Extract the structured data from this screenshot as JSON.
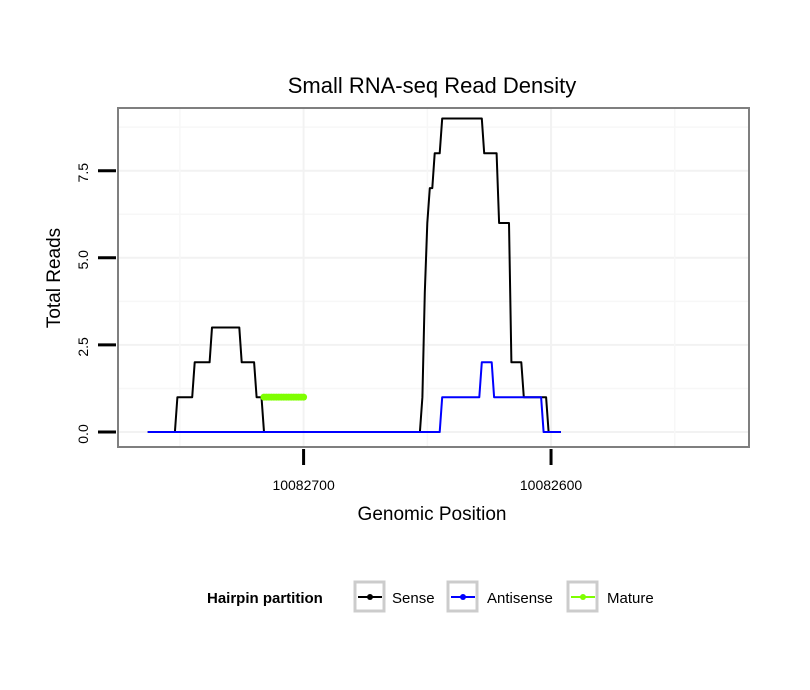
{
  "chart_data": {
    "type": "line",
    "title": "Small RNA-seq Read Density",
    "xlabel": "Genomic Position",
    "ylabel": "Total Reads",
    "x_reversed": true,
    "xlim": [
      10082775,
      10082520
    ],
    "ylim": [
      0,
      9.3
    ],
    "x_ticks": [
      {
        "value": 10082700,
        "label": "10082700"
      },
      {
        "value": 10082600,
        "label": "10082600"
      }
    ],
    "y_ticks": [
      {
        "value": 0,
        "label": "0.0"
      },
      {
        "value": 2.5,
        "label": "2.5"
      },
      {
        "value": 5,
        "label": "5.0"
      },
      {
        "value": 7.5,
        "label": "7.5"
      }
    ],
    "grid": true,
    "legend": {
      "title": "Hairpin partition",
      "position": "bottom",
      "entries": [
        {
          "name": "Sense",
          "color": "#000000"
        },
        {
          "name": "Antisense",
          "color": "#0000ff"
        },
        {
          "name": "Mature",
          "color": "#7fff00"
        }
      ]
    },
    "series": [
      {
        "name": "Sense",
        "color": "#000000",
        "x": [
          10082763,
          10082752,
          10082751,
          10082745,
          10082744,
          10082738,
          10082737,
          10082726,
          10082725,
          10082720,
          10082719,
          10082717,
          10082716,
          10082653,
          10082652,
          10082651,
          10082650,
          10082649,
          10082648,
          10082647,
          10082645,
          10082644,
          10082642,
          10082641,
          10082636,
          10082635,
          10082628,
          10082627,
          10082622,
          10082621,
          10082617,
          10082616,
          10082612,
          10082611,
          10082607,
          10082606,
          10082602,
          10082601,
          10082596
        ],
        "y": [
          0,
          0,
          1,
          1,
          2,
          2,
          3,
          3,
          2,
          2,
          1,
          1,
          0,
          0,
          1,
          4,
          6,
          7,
          7,
          8,
          8,
          9,
          9,
          9,
          9,
          9,
          9,
          8,
          8,
          6,
          6,
          2,
          2,
          1,
          1,
          1,
          1,
          0,
          0
        ]
      },
      {
        "name": "Antisense",
        "color": "#0000ff",
        "x": [
          10082763,
          10082645,
          10082644,
          10082629,
          10082628,
          10082624,
          10082623,
          10082619,
          10082618,
          10082604,
          10082603,
          10082596
        ],
        "y": [
          0,
          0,
          1,
          1,
          2,
          2,
          1,
          1,
          1,
          1,
          0,
          0
        ]
      },
      {
        "name": "Mature",
        "color": "#7fff00",
        "x": [
          10082716,
          10082715,
          10082714,
          10082713,
          10082712,
          10082711,
          10082710,
          10082709,
          10082708,
          10082707,
          10082706,
          10082705,
          10082704,
          10082703,
          10082702,
          10082701,
          10082700
        ],
        "y": [
          1,
          1,
          1,
          1,
          1,
          1,
          1,
          1,
          1,
          1,
          1,
          1,
          1,
          1,
          1,
          1,
          1
        ]
      }
    ]
  }
}
